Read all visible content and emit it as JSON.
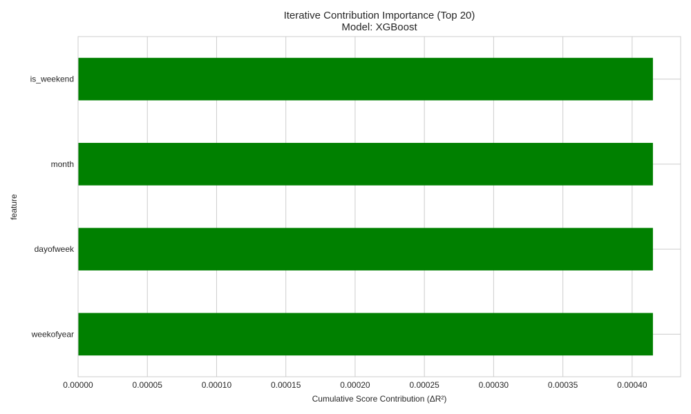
{
  "chart_data": {
    "type": "bar",
    "orientation": "horizontal",
    "title": "Iterative Contribution Importance (Top 20)",
    "subtitle": "Model: XGBoost",
    "xlabel": "Cumulative Score Contribution (ΔR²)",
    "ylabel": "feature",
    "categories": [
      "is_weekend",
      "month",
      "dayofweek",
      "weekofyear"
    ],
    "values": [
      0.000415,
      0.000415,
      0.000415,
      0.000415
    ],
    "xlim": [
      0,
      0.000435
    ],
    "xticks": [
      0,
      5e-05,
      0.0001,
      0.00015,
      0.0002,
      0.00025,
      0.0003,
      0.00035,
      0.0004
    ],
    "xtick_labels": [
      "0.00000",
      "0.00005",
      "0.00010",
      "0.00015",
      "0.00020",
      "0.00025",
      "0.00030",
      "0.00035",
      "0.00040"
    ],
    "grid": true,
    "bar_color": "#008000",
    "grid_color": "#cccccc"
  }
}
